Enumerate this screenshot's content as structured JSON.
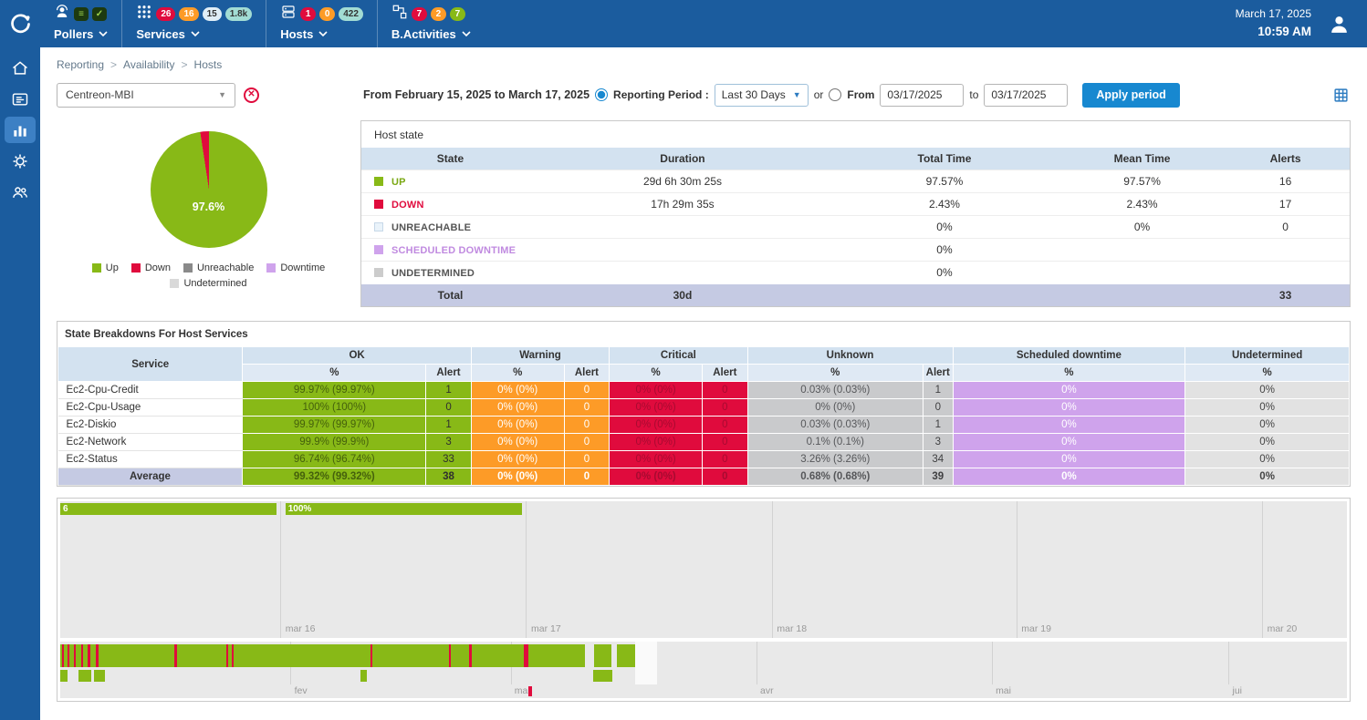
{
  "header": {
    "date": "March 17, 2025",
    "time": "10:59 AM",
    "nav": [
      {
        "id": "pollers",
        "label": "Pollers",
        "icon": "pollers-icon",
        "badges": [
          {
            "text": "≡",
            "bg": "#1d3a10",
            "fg": "#9ed34f",
            "kind": "icon"
          },
          {
            "text": "✓",
            "bg": "#1d3a10",
            "fg": "#9ed34f",
            "kind": "icon"
          }
        ]
      },
      {
        "id": "services",
        "label": "Services",
        "icon": "services-icon",
        "badges": [
          {
            "text": "26",
            "bg": "#e00b3d",
            "fg": "#ffffff"
          },
          {
            "text": "16",
            "bg": "#fd9b27",
            "fg": "#ffffff"
          },
          {
            "text": "15",
            "bg": "#e0eef7",
            "fg": "#333333"
          },
          {
            "text": "1.8k",
            "bg": "#a2dcd4",
            "fg": "#333333"
          }
        ]
      },
      {
        "id": "hosts",
        "label": "Hosts",
        "icon": "hosts-icon",
        "badges": [
          {
            "text": "1",
            "bg": "#e00b3d",
            "fg": "#ffffff"
          },
          {
            "text": "0",
            "bg": "#fd9b27",
            "fg": "#ffffff"
          },
          {
            "text": "422",
            "bg": "#a2dcd4",
            "fg": "#333333"
          }
        ]
      },
      {
        "id": "b-activities",
        "label": "B.Activities",
        "icon": "business-activities-icon",
        "badges": [
          {
            "text": "7",
            "bg": "#e00b3d",
            "fg": "#ffffff"
          },
          {
            "text": "2",
            "bg": "#fd9b27",
            "fg": "#ffffff"
          },
          {
            "text": "7",
            "bg": "#88b917",
            "fg": "#ffffff"
          }
        ]
      }
    ]
  },
  "breadcrumb": {
    "items": [
      "Reporting",
      "Availability",
      "Hosts"
    ],
    "separator": ">"
  },
  "filters": {
    "host_select": "Centreon-MBI",
    "range_text": "From February 15, 2025 to March 17, 2025",
    "period_label": "Reporting Period :",
    "period_select": "Last 30 Days",
    "or_label": "or",
    "from_label": "From",
    "from_value": "03/17/2025",
    "to_label": "to",
    "to_value": "03/17/2025",
    "apply_label": "Apply period"
  },
  "pie": {
    "label": "97.6%",
    "slices": [
      {
        "name": "Up",
        "value": 97.6,
        "color": "#88b917"
      },
      {
        "name": "Down",
        "value": 2.4,
        "color": "#e00b3d"
      }
    ],
    "legend": [
      {
        "label": "Up",
        "color": "#88b917"
      },
      {
        "label": "Down",
        "color": "#e00b3d"
      },
      {
        "label": "Unreachable",
        "color": "#8a8a8a"
      },
      {
        "label": "Downtime",
        "color": "#cfa3ec"
      },
      {
        "label": "Undetermined",
        "color": "#d9d9d9"
      }
    ]
  },
  "host_state": {
    "title": "Host state",
    "columns": [
      "State",
      "Duration",
      "Total Time",
      "Mean Time",
      "Alerts"
    ],
    "rows": [
      {
        "state": "UP",
        "color": "#88b917",
        "text_color": "#7aa813",
        "duration": "29d 6h 30m 25s",
        "total": "97.57%",
        "mean": "97.57%",
        "alerts": "16"
      },
      {
        "state": "DOWN",
        "color": "#e00b3d",
        "text_color": "#e00b3d",
        "duration": "17h 29m 35s",
        "total": "2.43%",
        "mean": "2.43%",
        "alerts": "17"
      },
      {
        "state": "UNREACHABLE",
        "color": "#eaf3fa",
        "text_color": "#555555",
        "duration": "",
        "total": "0%",
        "mean": "0%",
        "alerts": "0"
      },
      {
        "state": "SCHEDULED DOWNTIME",
        "color": "#cfa3ec",
        "text_color": "#c08ae0",
        "duration": "",
        "total": "0%",
        "mean": "",
        "alerts": ""
      },
      {
        "state": "UNDETERMINED",
        "color": "#cccccc",
        "text_color": "#555555",
        "duration": "",
        "total": "0%",
        "mean": "",
        "alerts": ""
      }
    ],
    "total_row": {
      "label": "Total",
      "duration": "30d",
      "total": "",
      "mean": "",
      "alerts": "33"
    }
  },
  "breakdown": {
    "title": "State Breakdowns For Host Services",
    "groups": [
      "Service",
      "OK",
      "Warning",
      "Critical",
      "Unknown",
      "Scheduled downtime",
      "Undetermined"
    ],
    "subheaders": [
      "%",
      "Alert",
      "%",
      "Alert",
      "%",
      "Alert",
      "%",
      "Alert",
      "%",
      "%"
    ],
    "rows": [
      {
        "service": "Ec2-Cpu-Credit",
        "ok_pct": "99.97% (99.97%)",
        "ok_alert": "1",
        "warn_pct": "0% (0%)",
        "warn_alert": "0",
        "crit_pct": "0% (0%)",
        "crit_alert": "0",
        "unk_pct": "0.03% (0.03%)",
        "unk_alert": "1",
        "sched_pct": "0%",
        "undet_pct": "0%"
      },
      {
        "service": "Ec2-Cpu-Usage",
        "ok_pct": "100% (100%)",
        "ok_alert": "0",
        "warn_pct": "0% (0%)",
        "warn_alert": "0",
        "crit_pct": "0% (0%)",
        "crit_alert": "0",
        "unk_pct": "0% (0%)",
        "unk_alert": "0",
        "sched_pct": "0%",
        "undet_pct": "0%"
      },
      {
        "service": "Ec2-Diskio",
        "ok_pct": "99.97% (99.97%)",
        "ok_alert": "1",
        "warn_pct": "0% (0%)",
        "warn_alert": "0",
        "crit_pct": "0% (0%)",
        "crit_alert": "0",
        "unk_pct": "0.03% (0.03%)",
        "unk_alert": "1",
        "sched_pct": "0%",
        "undet_pct": "0%"
      },
      {
        "service": "Ec2-Network",
        "ok_pct": "99.9% (99.9%)",
        "ok_alert": "3",
        "warn_pct": "0% (0%)",
        "warn_alert": "0",
        "crit_pct": "0% (0%)",
        "crit_alert": "0",
        "unk_pct": "0.1% (0.1%)",
        "unk_alert": "3",
        "sched_pct": "0%",
        "undet_pct": "0%"
      },
      {
        "service": "Ec2-Status",
        "ok_pct": "96.74% (96.74%)",
        "ok_alert": "33",
        "warn_pct": "0% (0%)",
        "warn_alert": "0",
        "crit_pct": "0% (0%)",
        "crit_alert": "0",
        "unk_pct": "3.26% (3.26%)",
        "unk_alert": "34",
        "sched_pct": "0%",
        "undet_pct": "0%"
      }
    ],
    "average_row": {
      "service": "Average",
      "ok_pct": "99.32% (99.32%)",
      "ok_alert": "38",
      "warn_pct": "0% (0%)",
      "warn_alert": "0",
      "crit_pct": "0% (0%)",
      "crit_alert": "0",
      "unk_pct": "0.68% (0.68%)",
      "unk_alert": "39",
      "sched_pct": "0%",
      "undet_pct": "0%"
    }
  },
  "timeline": {
    "plot": {
      "bars": [
        {
          "left": 0,
          "width": 16.8,
          "label": "6"
        },
        {
          "left": 17.5,
          "width": 18.4,
          "label": "100%"
        }
      ],
      "gridlines": [
        17.1,
        36.2,
        55.3,
        74.3,
        93.4
      ],
      "labels": [
        "mar 16",
        "mar 17",
        "mar 18",
        "mar 19",
        "mar 20"
      ]
    },
    "scrubber": {
      "band_end": 44.7,
      "ticks": [
        0.15,
        0.55,
        1.05,
        1.6,
        2.15,
        2.8,
        8.9,
        12.9,
        13.35,
        24.1,
        30.2,
        31.8
      ],
      "tick_width": 0.16,
      "wide_tick": {
        "pos": 36.05,
        "width": 0.32
      },
      "gaps": [
        [
          40.8,
          0.7
        ],
        [
          42.85,
          0.4
        ]
      ],
      "blocks": [
        [
          0,
          0.55
        ],
        [
          1.45,
          0.95
        ],
        [
          2.6,
          0.85
        ],
        [
          23.3,
          0.55
        ],
        [
          41.4,
          1.5
        ]
      ],
      "selection": [
        44.7,
        1.7
      ],
      "gridlines": [
        17.9,
        35.0,
        54.1,
        72.4,
        90.8
      ],
      "labels": [
        "fev",
        "mar",
        "avr",
        "mai",
        "jui"
      ],
      "marker": 36.4
    }
  }
}
